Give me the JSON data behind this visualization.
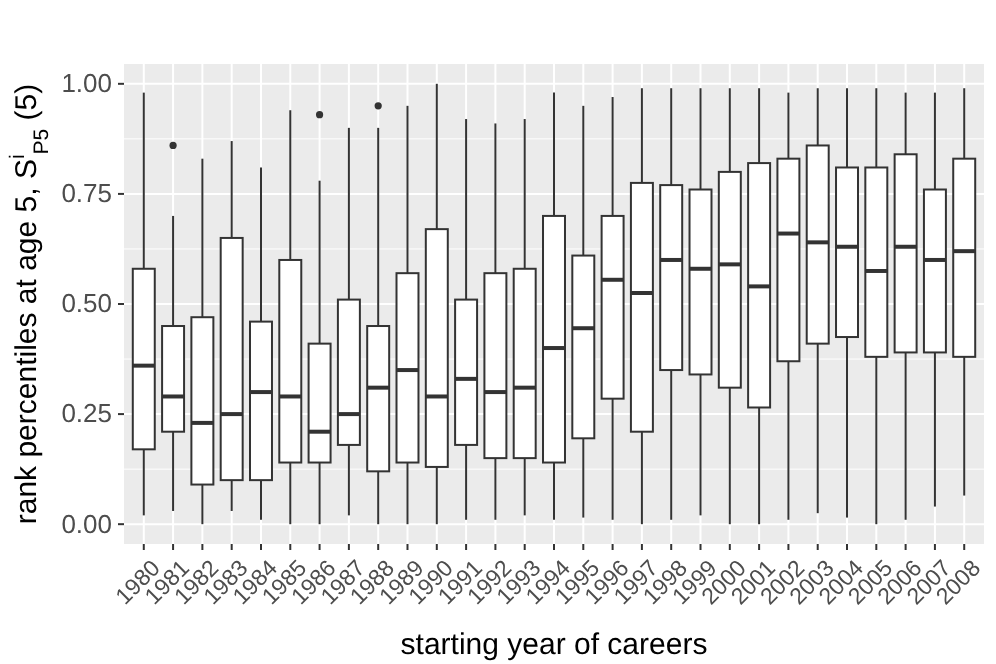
{
  "chart_data": {
    "type": "box",
    "xlabel": "starting year of careers",
    "ylabel": "rank percentiles at age 5, S$^{i}$$_{P5}$ (5)",
    "categories": [
      "1980",
      "1981",
      "1982",
      "1983",
      "1984",
      "1985",
      "1986",
      "1987",
      "1988",
      "1989",
      "1990",
      "1991",
      "1992",
      "1993",
      "1994",
      "1995",
      "1996",
      "1997",
      "1998",
      "1999",
      "2000",
      "2001",
      "2002",
      "2003",
      "2004",
      "2005",
      "2006",
      "2007",
      "2008"
    ],
    "boxes": [
      {
        "low": 0.02,
        "q1": 0.17,
        "median": 0.36,
        "q3": 0.58,
        "high": 0.98
      },
      {
        "low": 0.03,
        "q1": 0.21,
        "median": 0.29,
        "q3": 0.45,
        "high": 0.7,
        "outliers": [
          0.86
        ]
      },
      {
        "low": 0.0,
        "q1": 0.09,
        "median": 0.23,
        "q3": 0.47,
        "high": 0.83
      },
      {
        "low": 0.03,
        "q1": 0.1,
        "median": 0.25,
        "q3": 0.65,
        "high": 0.87
      },
      {
        "low": 0.01,
        "q1": 0.1,
        "median": 0.3,
        "q3": 0.46,
        "high": 0.81
      },
      {
        "low": 0.0,
        "q1": 0.14,
        "median": 0.29,
        "q3": 0.6,
        "high": 0.94
      },
      {
        "low": 0.0,
        "q1": 0.14,
        "median": 0.21,
        "q3": 0.41,
        "high": 0.78,
        "outliers": [
          0.93
        ]
      },
      {
        "low": 0.02,
        "q1": 0.18,
        "median": 0.25,
        "q3": 0.51,
        "high": 0.9
      },
      {
        "low": 0.0,
        "q1": 0.12,
        "median": 0.31,
        "q3": 0.45,
        "high": 0.9,
        "outliers": [
          0.95
        ]
      },
      {
        "low": 0.0,
        "q1": 0.14,
        "median": 0.35,
        "q3": 0.57,
        "high": 0.95
      },
      {
        "low": 0.0,
        "q1": 0.13,
        "median": 0.29,
        "q3": 0.67,
        "high": 1.0
      },
      {
        "low": 0.01,
        "q1": 0.18,
        "median": 0.33,
        "q3": 0.51,
        "high": 0.92
      },
      {
        "low": 0.01,
        "q1": 0.15,
        "median": 0.3,
        "q3": 0.57,
        "high": 0.91
      },
      {
        "low": 0.02,
        "q1": 0.15,
        "median": 0.31,
        "q3": 0.58,
        "high": 0.92
      },
      {
        "low": 0.01,
        "q1": 0.14,
        "median": 0.4,
        "q3": 0.7,
        "high": 0.98
      },
      {
        "low": 0.015,
        "q1": 0.195,
        "median": 0.445,
        "q3": 0.61,
        "high": 0.95
      },
      {
        "low": 0.01,
        "q1": 0.285,
        "median": 0.555,
        "q3": 0.7,
        "high": 0.97
      },
      {
        "low": 0.0,
        "q1": 0.21,
        "median": 0.525,
        "q3": 0.775,
        "high": 0.99
      },
      {
        "low": 0.01,
        "q1": 0.35,
        "median": 0.6,
        "q3": 0.77,
        "high": 0.99
      },
      {
        "low": 0.02,
        "q1": 0.34,
        "median": 0.58,
        "q3": 0.76,
        "high": 0.99
      },
      {
        "low": 0.0,
        "q1": 0.31,
        "median": 0.59,
        "q3": 0.8,
        "high": 0.99
      },
      {
        "low": 0.0,
        "q1": 0.265,
        "median": 0.54,
        "q3": 0.82,
        "high": 0.99
      },
      {
        "low": 0.01,
        "q1": 0.37,
        "median": 0.66,
        "q3": 0.83,
        "high": 0.98
      },
      {
        "low": 0.025,
        "q1": 0.41,
        "median": 0.64,
        "q3": 0.86,
        "high": 0.99
      },
      {
        "low": 0.015,
        "q1": 0.425,
        "median": 0.63,
        "q3": 0.81,
        "high": 0.99
      },
      {
        "low": 0.0,
        "q1": 0.38,
        "median": 0.575,
        "q3": 0.81,
        "high": 0.99
      },
      {
        "low": 0.01,
        "q1": 0.39,
        "median": 0.63,
        "q3": 0.84,
        "high": 0.98
      },
      {
        "low": 0.04,
        "q1": 0.39,
        "median": 0.6,
        "q3": 0.76,
        "high": 0.98
      },
      {
        "low": 0.065,
        "q1": 0.38,
        "median": 0.62,
        "q3": 0.83,
        "high": 0.99
      }
    ],
    "ylim": [
      -0.045,
      1.045
    ],
    "yticks": [
      {
        "value": 0,
        "label": "0.00"
      },
      {
        "value": 0.25,
        "label": "0.25"
      },
      {
        "value": 0.5,
        "label": "0.50"
      },
      {
        "value": 0.75,
        "label": "0.75"
      },
      {
        "value": 1,
        "label": "1.00"
      }
    ],
    "grid": true
  }
}
